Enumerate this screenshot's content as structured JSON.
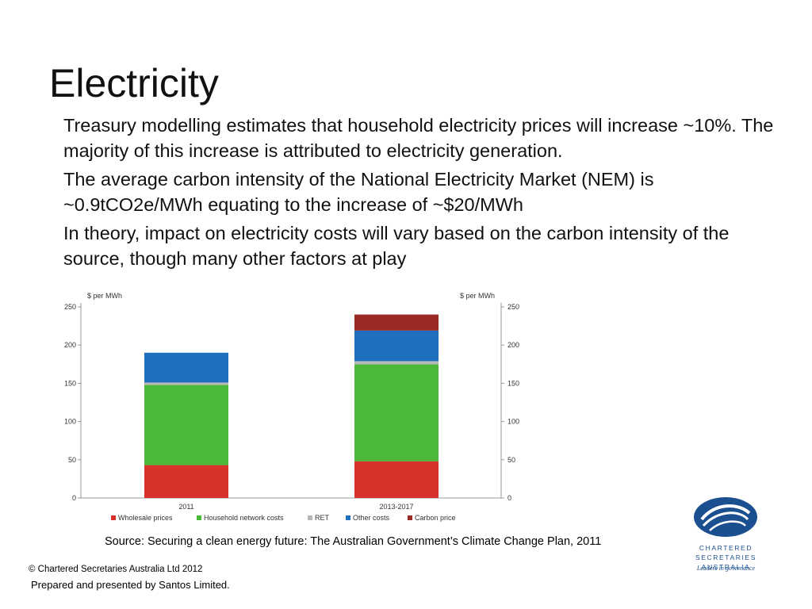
{
  "slide": {
    "title": "Electricity",
    "bullets": [
      "Treasury modelling estimates that household electricity prices will increase ~10%. The majority of this increase is attributed to electricity generation.",
      "The average carbon intensity of the National Electricity Market (NEM) is ~0.9tCO2e/MWh equating to the increase of ~$20/MWh",
      "In theory, impact on electricity costs will vary based on the carbon intensity of the source, though many other factors at play"
    ],
    "source": "Source: Securing a clean energy future: The Australian Government’s Climate Change Plan, 2011",
    "copyright": "© Chartered Secretaries Australia Ltd 2012",
    "prepared": "Prepared and presented by Santos Limited."
  },
  "logo": {
    "line1": "CHARTERED SECRETARIES",
    "line2": "AUSTRALIA",
    "tagline": "Leaders in governance"
  },
  "colors": {
    "wholesale": "#d7312b",
    "network": "#4cb83a",
    "ret": "#b8b8b8",
    "other": "#1f6fbf",
    "carbon": "#9b2a25",
    "logo_blue": "#1b4f8f"
  },
  "chart_data": {
    "type": "bar",
    "stacked": true,
    "categories": [
      "2011",
      "2013-2017"
    ],
    "ylabel_left": "$ per MWh",
    "ylabel_right": "$ per MWh",
    "ylim": [
      0,
      250
    ],
    "yticks": [
      0,
      50,
      100,
      150,
      200,
      250
    ],
    "series": [
      {
        "name": "Wholesale prices",
        "color": "#d7312b",
        "values": [
          43,
          48
        ]
      },
      {
        "name": "Household network costs",
        "color": "#4cb83a",
        "values": [
          105,
          127
        ]
      },
      {
        "name": "RET",
        "color": "#b8b8b8",
        "values": [
          3,
          4
        ]
      },
      {
        "name": "Other costs",
        "color": "#1f6fbf",
        "values": [
          39,
          40
        ]
      },
      {
        "name": "Carbon price",
        "color": "#9b2a25",
        "values": [
          0,
          21
        ]
      }
    ],
    "legend_position": "bottom",
    "grid": false
  }
}
